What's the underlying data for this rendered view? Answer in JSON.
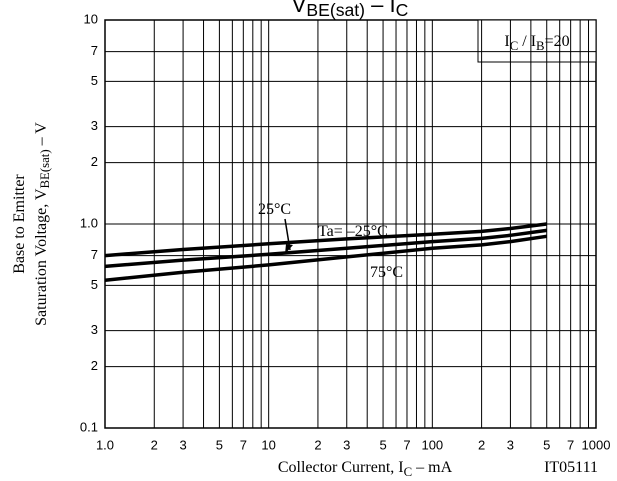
{
  "chart_data": {
    "type": "line",
    "title": [
      {
        "text": "V"
      },
      {
        "text": "BE(sat)",
        "sub": true
      },
      {
        "text": " – I"
      },
      {
        "text": "C",
        "sub": true
      }
    ],
    "y_label": [
      [
        {
          "text": "Base to Emitter"
        }
      ],
      [
        {
          "text": "Saturation Voltage, V"
        },
        {
          "text": "BE(sat)",
          "sub": true
        },
        {
          "text": "  –  V"
        }
      ]
    ],
    "x_label": [
      {
        "text": "Collector Current, I"
      },
      {
        "text": "C",
        "sub": true
      },
      {
        "text": "  –  mA"
      }
    ],
    "condition": [
      {
        "text": "I"
      },
      {
        "text": "C",
        "sub": true
      },
      {
        "text": " / I"
      },
      {
        "text": "B",
        "sub": true
      },
      {
        "text": "=20"
      }
    ],
    "figure_id": "IT05111",
    "log_x": true,
    "log_y": true,
    "grid": true,
    "xlim": [
      1,
      1000
    ],
    "ylim": [
      0.1,
      10
    ],
    "xticks": [
      {
        "value": 1,
        "label": "1.0"
      },
      2,
      3,
      5,
      7,
      10,
      {
        "value": 20,
        "label": "2"
      },
      {
        "value": 30,
        "label": "3"
      },
      {
        "value": 50,
        "label": "5"
      },
      {
        "value": 70,
        "label": "7"
      },
      100,
      {
        "value": 200,
        "label": "2"
      },
      {
        "value": 300,
        "label": "3"
      },
      {
        "value": 500,
        "label": "5"
      },
      {
        "value": 700,
        "label": "7"
      },
      1000
    ],
    "xminor": [
      4,
      6,
      8,
      9,
      40,
      60,
      80,
      90,
      400,
      600,
      800,
      900
    ],
    "yticks": [
      {
        "value": 0.1,
        "label": "0.1"
      },
      {
        "value": 0.2,
        "label": "2"
      },
      {
        "value": 0.3,
        "label": "3"
      },
      {
        "value": 0.5,
        "label": "5"
      },
      {
        "value": 0.7,
        "label": "7"
      },
      {
        "value": 1,
        "label": "1.0"
      },
      2,
      3,
      5,
      7,
      10
    ],
    "x": [
      1,
      3,
      10,
      30,
      100,
      200,
      300,
      500
    ],
    "series": [
      {
        "name": "Ta= –25°C",
        "color": "#000000",
        "values": [
          0.7,
          0.75,
          0.8,
          0.845,
          0.89,
          0.92,
          0.95,
          1.0
        ]
      },
      {
        "name": "25°C",
        "color": "#000000",
        "values": [
          0.62,
          0.665,
          0.71,
          0.76,
          0.82,
          0.85,
          0.88,
          0.93
        ]
      },
      {
        "name": "75°C",
        "color": "#000000",
        "values": [
          0.53,
          0.58,
          0.63,
          0.69,
          0.76,
          0.79,
          0.82,
          0.87
        ]
      }
    ]
  }
}
